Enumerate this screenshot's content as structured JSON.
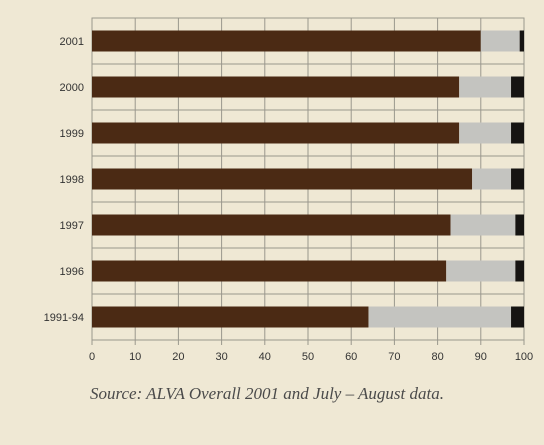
{
  "chart_data": {
    "type": "bar",
    "orientation": "horizontal",
    "stacked": true,
    "categories": [
      "2001",
      "2000",
      "1999",
      "1998",
      "1997",
      "1996",
      "1991-94"
    ],
    "series": [
      {
        "values": [
          90,
          85,
          85,
          88,
          83,
          82,
          64
        ]
      },
      {
        "values": [
          9,
          12,
          12,
          9,
          15,
          16,
          33
        ]
      },
      {
        "values": [
          1,
          3,
          3,
          3,
          2,
          2,
          3
        ]
      }
    ],
    "xlim": [
      0,
      100
    ],
    "xticks": [
      0,
      10,
      20,
      30,
      40,
      50,
      60,
      70,
      80,
      90,
      100
    ],
    "grid": true,
    "title": "",
    "xlabel": "",
    "ylabel": ""
  },
  "colors": {
    "series": [
      "#4b2a14",
      "#c4c4c0",
      "#161412"
    ],
    "background": "#efe8d4",
    "grid": "#9a978d"
  },
  "source_note": "Source: ALVA Overall 2001 and July – August data."
}
